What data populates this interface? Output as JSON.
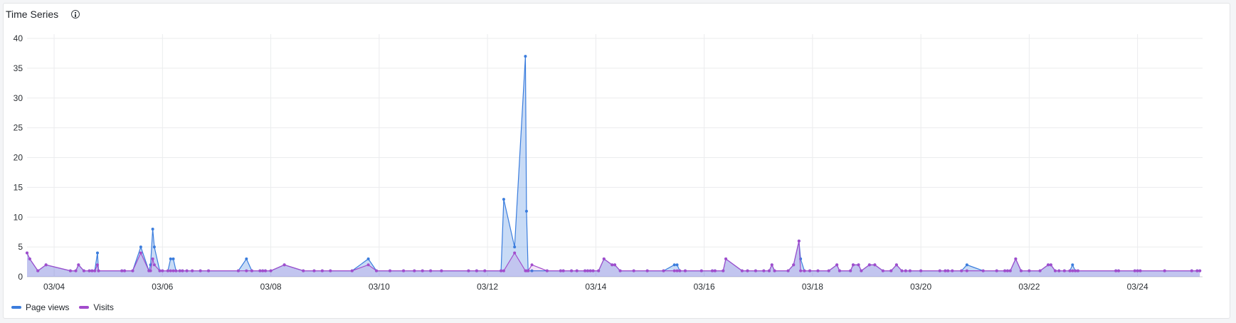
{
  "panel": {
    "title": "Time Series",
    "info_icon": "info-icon"
  },
  "chart_data": {
    "type": "line",
    "title": "Time Series",
    "xlabel": "",
    "ylabel": "",
    "x_ticks": [
      "03/04",
      "03/06",
      "03/08",
      "03/10",
      "03/12",
      "03/14",
      "03/16",
      "03/18",
      "03/20",
      "03/22",
      "03/24"
    ],
    "x_tick_values": [
      4,
      6,
      8,
      10,
      12,
      14,
      16,
      18,
      20,
      22,
      24
    ],
    "xlim": [
      3.5,
      25.2
    ],
    "ylim": [
      0,
      40
    ],
    "y_ticks": [
      0,
      5,
      10,
      15,
      20,
      25,
      30,
      35,
      40
    ],
    "grid": true,
    "legend_position": "bottom-left",
    "series": [
      {
        "name": "Page views",
        "color": "#3b7ddd",
        "points": [
          [
            3.5,
            4
          ],
          [
            3.55,
            3
          ],
          [
            3.7,
            1
          ],
          [
            3.85,
            2
          ],
          [
            4.3,
            1
          ],
          [
            4.4,
            1
          ],
          [
            4.45,
            2
          ],
          [
            4.55,
            1
          ],
          [
            4.65,
            1
          ],
          [
            4.7,
            1
          ],
          [
            4.75,
            1
          ],
          [
            4.8,
            4
          ],
          [
            4.82,
            1
          ],
          [
            5.25,
            1
          ],
          [
            5.3,
            1
          ],
          [
            5.45,
            1
          ],
          [
            5.6,
            5
          ],
          [
            5.75,
            1
          ],
          [
            5.78,
            2
          ],
          [
            5.82,
            8
          ],
          [
            5.85,
            5
          ],
          [
            5.95,
            1
          ],
          [
            6.0,
            1
          ],
          [
            6.1,
            1
          ],
          [
            6.15,
            3
          ],
          [
            6.2,
            3
          ],
          [
            6.25,
            1
          ],
          [
            6.32,
            1
          ],
          [
            6.37,
            1
          ],
          [
            6.45,
            1
          ],
          [
            6.55,
            1
          ],
          [
            6.7,
            1
          ],
          [
            6.85,
            1
          ],
          [
            7.4,
            1
          ],
          [
            7.55,
            3
          ],
          [
            7.65,
            1
          ],
          [
            7.8,
            1
          ],
          [
            7.85,
            1
          ],
          [
            7.9,
            1
          ],
          [
            8.0,
            1
          ],
          [
            8.25,
            2
          ],
          [
            8.6,
            1
          ],
          [
            8.8,
            1
          ],
          [
            8.95,
            1
          ],
          [
            9.1,
            1
          ],
          [
            9.5,
            1
          ],
          [
            9.8,
            3
          ],
          [
            9.95,
            1
          ],
          [
            10.2,
            1
          ],
          [
            10.45,
            1
          ],
          [
            10.65,
            1
          ],
          [
            10.8,
            1
          ],
          [
            10.95,
            1
          ],
          [
            11.15,
            1
          ],
          [
            11.65,
            1
          ],
          [
            11.8,
            1
          ],
          [
            11.95,
            1
          ],
          [
            12.25,
            1
          ],
          [
            12.3,
            13
          ],
          [
            12.5,
            5
          ],
          [
            12.7,
            37
          ],
          [
            12.72,
            11
          ],
          [
            12.75,
            1
          ],
          [
            12.82,
            1
          ],
          [
            13.1,
            1
          ],
          [
            13.35,
            1
          ],
          [
            13.4,
            1
          ],
          [
            13.55,
            1
          ],
          [
            13.65,
            1
          ],
          [
            13.8,
            1
          ],
          [
            13.85,
            1
          ],
          [
            13.9,
            1
          ],
          [
            13.95,
            1
          ],
          [
            14.05,
            1
          ],
          [
            14.15,
            3
          ],
          [
            14.3,
            2
          ],
          [
            14.35,
            2
          ],
          [
            14.45,
            1
          ],
          [
            14.7,
            1
          ],
          [
            14.95,
            1
          ],
          [
            15.25,
            1
          ],
          [
            15.45,
            2
          ],
          [
            15.5,
            2
          ],
          [
            15.55,
            1
          ],
          [
            15.65,
            1
          ],
          [
            15.95,
            1
          ],
          [
            16.15,
            1
          ],
          [
            16.2,
            1
          ],
          [
            16.35,
            1
          ],
          [
            16.4,
            3
          ],
          [
            16.7,
            1
          ],
          [
            16.8,
            1
          ],
          [
            16.95,
            1
          ],
          [
            17.1,
            1
          ],
          [
            17.2,
            1
          ],
          [
            17.25,
            2
          ],
          [
            17.3,
            1
          ],
          [
            17.55,
            1
          ],
          [
            17.65,
            2
          ],
          [
            17.75,
            6
          ],
          [
            17.78,
            3
          ],
          [
            17.85,
            1
          ],
          [
            17.95,
            1
          ],
          [
            18.1,
            1
          ],
          [
            18.3,
            1
          ],
          [
            18.45,
            2
          ],
          [
            18.5,
            1
          ],
          [
            18.7,
            1
          ],
          [
            18.75,
            2
          ],
          [
            18.85,
            2
          ],
          [
            18.9,
            1
          ],
          [
            19.05,
            2
          ],
          [
            19.15,
            2
          ],
          [
            19.3,
            1
          ],
          [
            19.45,
            1
          ],
          [
            19.55,
            2
          ],
          [
            19.65,
            1
          ],
          [
            19.72,
            1
          ],
          [
            19.8,
            1
          ],
          [
            20.0,
            1
          ],
          [
            20.35,
            1
          ],
          [
            20.45,
            1
          ],
          [
            20.5,
            1
          ],
          [
            20.58,
            1
          ],
          [
            20.75,
            1
          ],
          [
            20.85,
            2
          ],
          [
            21.15,
            1
          ],
          [
            21.4,
            1
          ],
          [
            21.55,
            1
          ],
          [
            21.6,
            1
          ],
          [
            21.65,
            1
          ],
          [
            21.75,
            3
          ],
          [
            21.85,
            1
          ],
          [
            22.0,
            1
          ],
          [
            22.2,
            1
          ],
          [
            22.35,
            2
          ],
          [
            22.4,
            2
          ],
          [
            22.48,
            1
          ],
          [
            22.55,
            1
          ],
          [
            22.65,
            1
          ],
          [
            22.75,
            1
          ],
          [
            22.8,
            2
          ],
          [
            22.85,
            1
          ],
          [
            22.9,
            1
          ],
          [
            23.6,
            1
          ],
          [
            23.65,
            1
          ],
          [
            23.95,
            1
          ],
          [
            24.0,
            1
          ],
          [
            24.05,
            1
          ],
          [
            24.5,
            1
          ],
          [
            25.0,
            1
          ],
          [
            25.1,
            1
          ],
          [
            25.15,
            1
          ]
        ]
      },
      {
        "name": "Visits",
        "color": "#a24ccc",
        "points": [
          [
            3.5,
            4
          ],
          [
            3.55,
            3
          ],
          [
            3.7,
            1
          ],
          [
            3.85,
            2
          ],
          [
            4.3,
            1
          ],
          [
            4.4,
            1
          ],
          [
            4.45,
            2
          ],
          [
            4.55,
            1
          ],
          [
            4.65,
            1
          ],
          [
            4.7,
            1
          ],
          [
            4.75,
            1
          ],
          [
            4.8,
            2
          ],
          [
            4.82,
            1
          ],
          [
            5.25,
            1
          ],
          [
            5.3,
            1
          ],
          [
            5.45,
            1
          ],
          [
            5.6,
            4
          ],
          [
            5.75,
            1
          ],
          [
            5.78,
            1
          ],
          [
            5.82,
            3
          ],
          [
            5.85,
            2
          ],
          [
            5.95,
            1
          ],
          [
            6.0,
            1
          ],
          [
            6.1,
            1
          ],
          [
            6.15,
            1
          ],
          [
            6.2,
            1
          ],
          [
            6.25,
            1
          ],
          [
            6.32,
            1
          ],
          [
            6.37,
            1
          ],
          [
            6.45,
            1
          ],
          [
            6.55,
            1
          ],
          [
            6.7,
            1
          ],
          [
            6.85,
            1
          ],
          [
            7.4,
            1
          ],
          [
            7.55,
            1
          ],
          [
            7.65,
            1
          ],
          [
            7.8,
            1
          ],
          [
            7.85,
            1
          ],
          [
            7.9,
            1
          ],
          [
            8.0,
            1
          ],
          [
            8.25,
            2
          ],
          [
            8.6,
            1
          ],
          [
            8.8,
            1
          ],
          [
            8.95,
            1
          ],
          [
            9.1,
            1
          ],
          [
            9.5,
            1
          ],
          [
            9.8,
            2
          ],
          [
            9.95,
            1
          ],
          [
            10.2,
            1
          ],
          [
            10.45,
            1
          ],
          [
            10.65,
            1
          ],
          [
            10.8,
            1
          ],
          [
            10.95,
            1
          ],
          [
            11.15,
            1
          ],
          [
            11.65,
            1
          ],
          [
            11.8,
            1
          ],
          [
            11.95,
            1
          ],
          [
            12.25,
            1
          ],
          [
            12.3,
            1
          ],
          [
            12.5,
            4
          ],
          [
            12.7,
            1
          ],
          [
            12.72,
            1
          ],
          [
            12.75,
            1
          ],
          [
            12.82,
            2
          ],
          [
            13.1,
            1
          ],
          [
            13.35,
            1
          ],
          [
            13.4,
            1
          ],
          [
            13.55,
            1
          ],
          [
            13.65,
            1
          ],
          [
            13.8,
            1
          ],
          [
            13.85,
            1
          ],
          [
            13.9,
            1
          ],
          [
            13.95,
            1
          ],
          [
            14.05,
            1
          ],
          [
            14.15,
            3
          ],
          [
            14.3,
            2
          ],
          [
            14.35,
            2
          ],
          [
            14.45,
            1
          ],
          [
            14.7,
            1
          ],
          [
            14.95,
            1
          ],
          [
            15.25,
            1
          ],
          [
            15.45,
            1
          ],
          [
            15.5,
            1
          ],
          [
            15.55,
            1
          ],
          [
            15.65,
            1
          ],
          [
            15.95,
            1
          ],
          [
            16.15,
            1
          ],
          [
            16.2,
            1
          ],
          [
            16.35,
            1
          ],
          [
            16.4,
            3
          ],
          [
            16.7,
            1
          ],
          [
            16.8,
            1
          ],
          [
            16.95,
            1
          ],
          [
            17.1,
            1
          ],
          [
            17.2,
            1
          ],
          [
            17.25,
            2
          ],
          [
            17.3,
            1
          ],
          [
            17.55,
            1
          ],
          [
            17.65,
            2
          ],
          [
            17.75,
            6
          ],
          [
            17.78,
            1
          ],
          [
            17.85,
            1
          ],
          [
            17.95,
            1
          ],
          [
            18.1,
            1
          ],
          [
            18.3,
            1
          ],
          [
            18.45,
            2
          ],
          [
            18.5,
            1
          ],
          [
            18.7,
            1
          ],
          [
            18.75,
            2
          ],
          [
            18.85,
            2
          ],
          [
            18.9,
            1
          ],
          [
            19.05,
            2
          ],
          [
            19.15,
            2
          ],
          [
            19.3,
            1
          ],
          [
            19.45,
            1
          ],
          [
            19.55,
            2
          ],
          [
            19.65,
            1
          ],
          [
            19.72,
            1
          ],
          [
            19.8,
            1
          ],
          [
            20.0,
            1
          ],
          [
            20.35,
            1
          ],
          [
            20.45,
            1
          ],
          [
            20.5,
            1
          ],
          [
            20.58,
            1
          ],
          [
            20.75,
            1
          ],
          [
            20.85,
            1
          ],
          [
            21.15,
            1
          ],
          [
            21.4,
            1
          ],
          [
            21.55,
            1
          ],
          [
            21.6,
            1
          ],
          [
            21.65,
            1
          ],
          [
            21.75,
            3
          ],
          [
            21.85,
            1
          ],
          [
            22.0,
            1
          ],
          [
            22.2,
            1
          ],
          [
            22.35,
            2
          ],
          [
            22.4,
            2
          ],
          [
            22.48,
            1
          ],
          [
            22.55,
            1
          ],
          [
            22.65,
            1
          ],
          [
            22.75,
            1
          ],
          [
            22.8,
            1
          ],
          [
            22.85,
            1
          ],
          [
            22.9,
            1
          ],
          [
            23.6,
            1
          ],
          [
            23.65,
            1
          ],
          [
            23.95,
            1
          ],
          [
            24.0,
            1
          ],
          [
            24.05,
            1
          ],
          [
            24.5,
            1
          ],
          [
            25.0,
            1
          ],
          [
            25.1,
            1
          ],
          [
            25.15,
            1
          ]
        ]
      }
    ]
  },
  "legend": [
    {
      "label": "Page views",
      "color": "#3b7ddd"
    },
    {
      "label": "Visits",
      "color": "#a24ccc"
    }
  ]
}
